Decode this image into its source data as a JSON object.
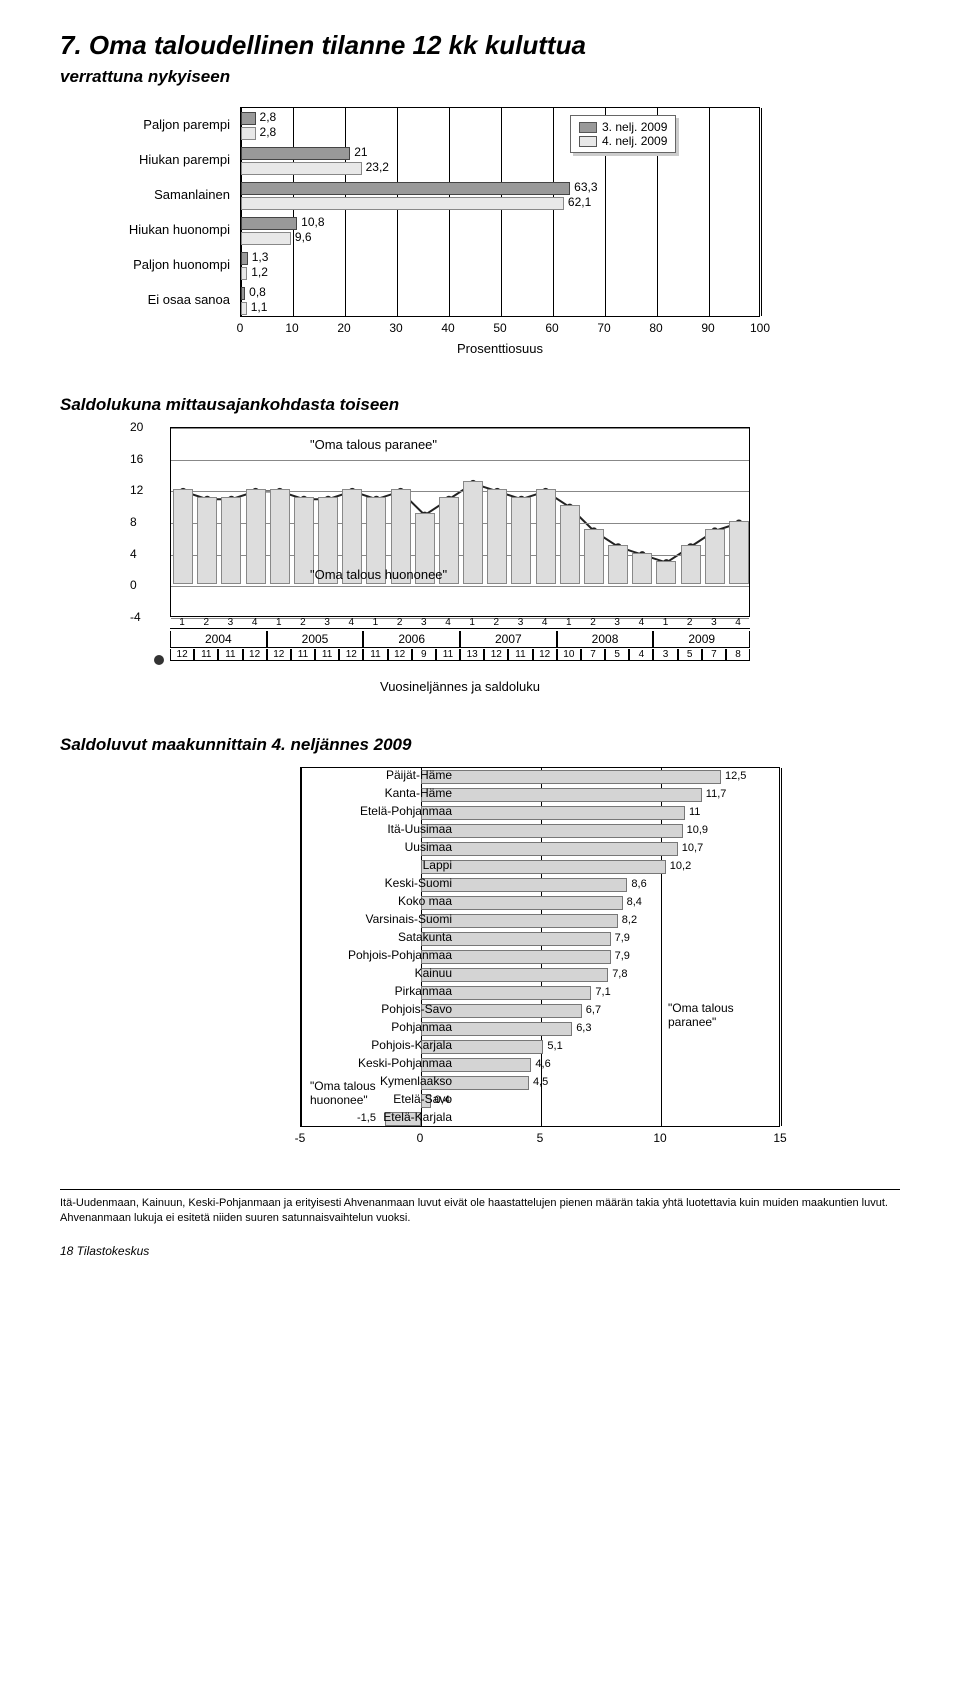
{
  "page": {
    "number_title": "7.",
    "title": "Oma taloudellinen tilanne 12 kk kuluttua",
    "subtitle": "verrattuna nykyiseen",
    "footer": "18   Tilastokeskus",
    "footnote": "Itä-Uudenmaan, Kainuun, Keski-Pohjanmaan ja erityisesti Ahvenanmaan luvut eivät ole haastattelujen pienen määrän takia yhtä luotettavia kuin muiden maakuntien luvut. Ahvenanmaan lukuja ei esitetä niiden suuren satunnaisvaihtelun vuoksi."
  },
  "chart1": {
    "type": "bar-horizontal-grouped",
    "categories": [
      "Paljon parempi",
      "Hiukan parempi",
      "Samanlainen",
      "Hiukan huonompi",
      "Paljon huonompi",
      "Ei osaa sanoa"
    ],
    "series": [
      {
        "name": "3. nelj. 2009",
        "color": "#999999",
        "values": [
          2.8,
          21,
          63.3,
          10.8,
          1.3,
          0.8
        ]
      },
      {
        "name": "4. nelj. 2009",
        "color": "#e8e8e8",
        "values": [
          2.8,
          23.2,
          62.1,
          9.6,
          1.2,
          1.1
        ]
      }
    ],
    "xlim": [
      0,
      100
    ],
    "xtick_step": 10,
    "xlabel": "Prosenttiosuus",
    "legend_labels": [
      "3. nelj. 2009",
      "4. nelj. 2009"
    ]
  },
  "chart2": {
    "title": "Saldolukuna mittausajankohdasta toiseen",
    "type": "line-over-bar",
    "annotation_top": "\"Oma talous paranee\"",
    "annotation_bottom": "\"Oma talous huononee\"",
    "ylim": [
      -4,
      20
    ],
    "yticks": [
      -4,
      0,
      4,
      8,
      12,
      16,
      20
    ],
    "years": [
      "2004",
      "2005",
      "2006",
      "2007",
      "2008",
      "2009"
    ],
    "quarters": [
      "1",
      "2",
      "3",
      "4"
    ],
    "values": [
      12,
      11,
      11,
      12,
      12,
      11,
      11,
      12,
      11,
      12,
      9,
      11,
      13,
      12,
      11,
      12,
      10,
      7,
      5,
      4,
      3,
      5,
      7,
      8
    ],
    "xlabel": "Vuosineljännes ja saldoluku",
    "bar_color": "#dddddd",
    "line_color": "#222222",
    "grid_color": "#888888"
  },
  "chart3": {
    "title": "Saldoluvut maakunnittain 4. neljännes 2009",
    "type": "bar-horizontal",
    "xlim": [
      -5,
      15
    ],
    "xticks": [
      -5,
      0,
      5,
      10,
      15
    ],
    "bar_color": "#d4d4d4",
    "note_left": "\"Oma talous huononee\"",
    "note_right": "\"Oma talous paranee\"",
    "items": [
      {
        "name": "Päijät-Häme",
        "value": 12.5
      },
      {
        "name": "Kanta-Häme",
        "value": 11.7
      },
      {
        "name": "Etelä-Pohjanmaa",
        "value": 11
      },
      {
        "name": "Itä-Uusimaa",
        "value": 10.9
      },
      {
        "name": "Uusimaa",
        "value": 10.7
      },
      {
        "name": "Lappi",
        "value": 10.2
      },
      {
        "name": "Keski-Suomi",
        "value": 8.6
      },
      {
        "name": "Koko maa",
        "value": 8.4
      },
      {
        "name": "Varsinais-Suomi",
        "value": 8.2
      },
      {
        "name": "Satakunta",
        "value": 7.9
      },
      {
        "name": "Pohjois-Pohjanmaa",
        "value": 7.9
      },
      {
        "name": "Kainuu",
        "value": 7.8
      },
      {
        "name": "Pirkanmaa",
        "value": 7.1
      },
      {
        "name": "Pohjois-Savo",
        "value": 6.7
      },
      {
        "name": "Pohjanmaa",
        "value": 6.3
      },
      {
        "name": "Pohjois-Karjala",
        "value": 5.1
      },
      {
        "name": "Keski-Pohjanmaa",
        "value": 4.6
      },
      {
        "name": "Kymenlaakso",
        "value": 4.5
      },
      {
        "name": "Etelä-Savo",
        "value": 0.4
      },
      {
        "name": "Etelä-Karjala",
        "value": -1.5
      }
    ]
  }
}
